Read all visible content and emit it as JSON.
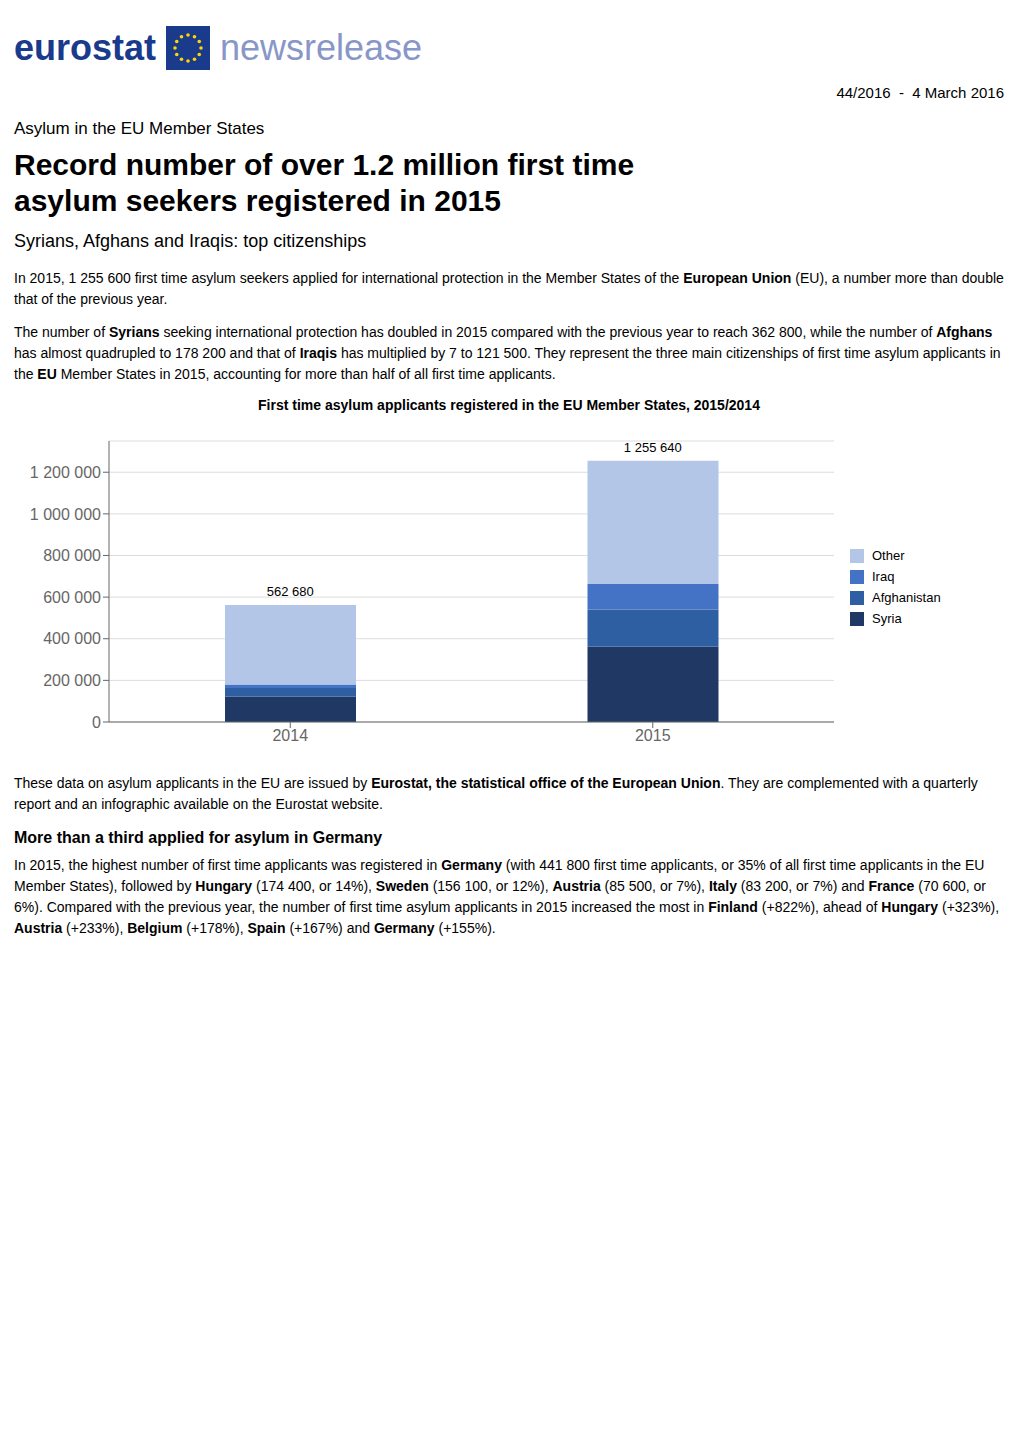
{
  "header": [
    "eurostat",
    "newsrelease"
  ],
  "date": "44/2016  -  4 March 2016",
  "supertitle": "Asylum in the EU Member States",
  "main_title": "Record number of over 1.2 million first time\nasylum seekers registered in 2015",
  "subtitle": "Syrians, Afghans and Iraqis: top citizenships",
  "before_chart": [
    {
      "text": "In 2015, 1 255 600 first time asylum seekers applied for international protection in the Member States of the European Union (EU), a number more than double that of the previous year.",
      "bold": [
        "European Union"
      ]
    },
    {
      "text": "The number of Syrians seeking international protection has doubled in 2015 compared with the previous year to reach 362 800, while the number of Afghans has almost quadrupled to 178 200 and that of Iraqis has multiplied by 7 to 121 500. They represent the three main citizenships of first time asylum applicants in the EU Member States in 2015, accounting for more than half of all first time applicants.",
      "bold": [
        "Syrians",
        "Afghans",
        "Iraqis",
        "EU"
      ]
    }
  ],
  "chart_data": {
    "type": "bar",
    "stacked": true,
    "title": "First time asylum applicants registered in the EU Member States, 2015/2014",
    "categories": [
      "2014",
      "2015"
    ],
    "series": [
      {
        "name": "Syria",
        "color": "#1f3864",
        "values": [
          122000,
          362800
        ]
      },
      {
        "name": "Afghanistan",
        "color": "#2e5fa3",
        "values": [
          41000,
          178200
        ]
      },
      {
        "name": "Iraq",
        "color": "#4472c4",
        "values": [
          17700,
          121500
        ]
      },
      {
        "name": "Other",
        "color": "#b4c6e7",
        "values": [
          381980,
          593140
        ]
      }
    ],
    "totals": [
      562680,
      1255640
    ],
    "total_labels": [
      "562 680",
      "1 255 640"
    ],
    "ylim": [
      0,
      1350000
    ],
    "yticks": [
      0,
      {
        "value": 200000,
        "label": "200 000"
      },
      {
        "value": 400000,
        "label": "400 000"
      },
      {
        "value": 600000,
        "label": "600 000"
      },
      {
        "value": 800000,
        "label": "800 000"
      },
      {
        "value": 1000000,
        "label": "1 000 000"
      },
      {
        "value": 1200000,
        "label": "1 200 000"
      }
    ],
    "grid": true,
    "legend": "right"
  },
  "after_chart": [
    {
      "text": "These data on asylum applicants in the EU are issued by Eurostat, the statistical office of the European Union. They are complemented with a quarterly report and an infographic available on the Eurostat website.",
      "bold": [
        "Eurostat, the statistical office of the European Union"
      ]
    },
    {
      "heading": "More than a third applied for asylum in Germany"
    },
    {
      "text": "In 2015, the highest number of first time applicants was registered in Germany (with 441 800 first time applicants, or 35% of all first time applicants in the EU Member States), followed by Hungary (174 400, or 14%), Sweden (156 100, or 12%), Austria (85 500, or 7%), Italy (83 200, or 7%) and France (70 600, or 6%). Compared with the previous year, the number of first time asylum applicants in 2015 increased the most in Finland (+822%), ahead of Hungary (+323%), Austria (+233%), Belgium (+178%), Spain (+167%) and Germany (+155%).",
      "bold": [
        "Germany",
        "Hungary",
        "Sweden",
        "Austria",
        "Italy",
        "France",
        "Finland",
        "Belgium",
        "Spain"
      ]
    }
  ]
}
